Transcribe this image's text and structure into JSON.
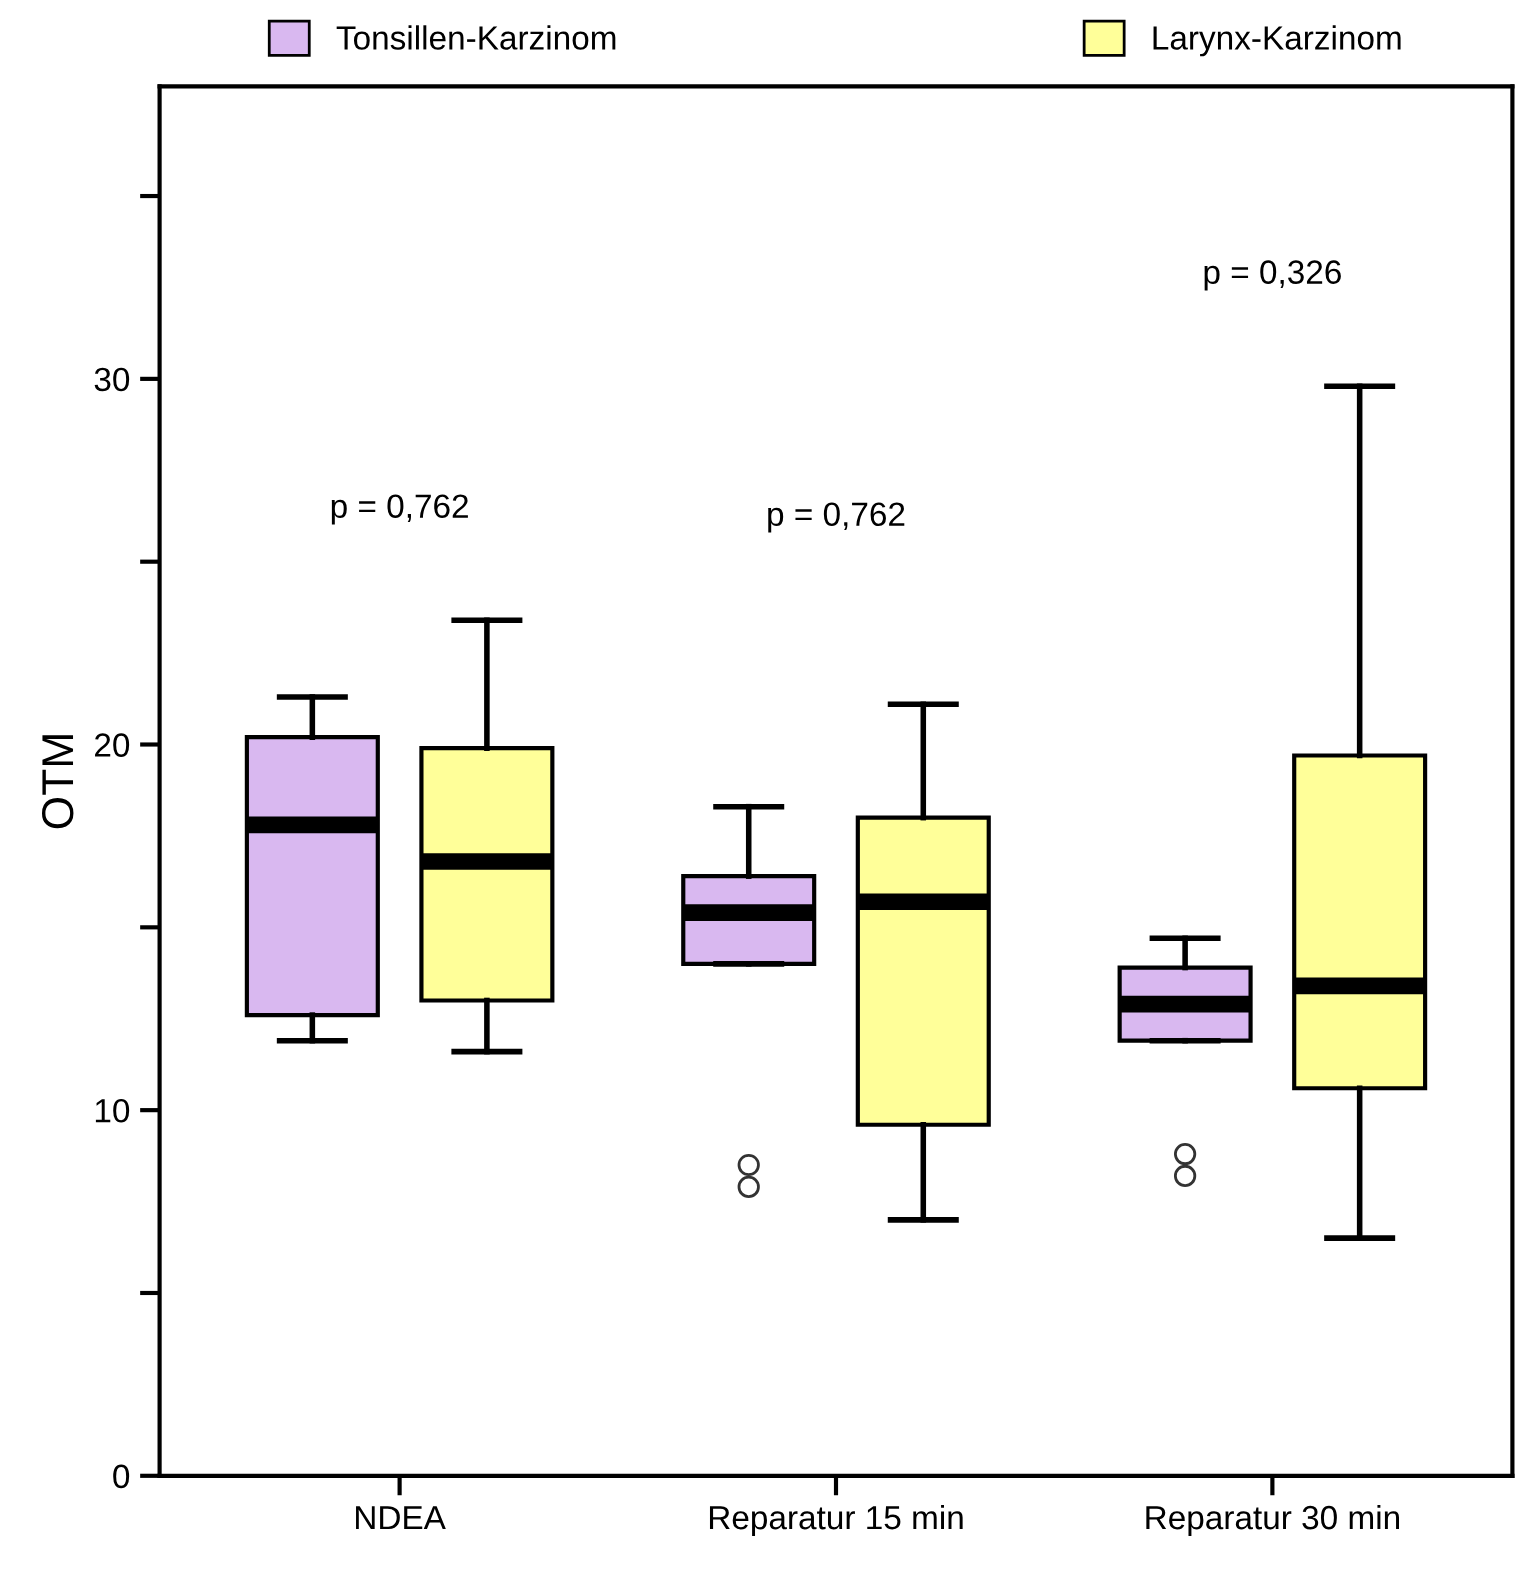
{
  "chart_data": {
    "type": "box",
    "ylabel": "OTM",
    "categories": [
      "NDEA",
      "Reparatur 15 min",
      "Reparatur 30 min"
    ],
    "series": [
      {
        "name": "Tonsillen-Karzinom",
        "color": "#d9b8f0",
        "boxes": [
          {
            "low": 11.9,
            "q1": 12.6,
            "median": 17.8,
            "q3": 20.2,
            "high": 21.3
          },
          {
            "low": 14.0,
            "q1": 14.0,
            "median": 15.4,
            "q3": 16.4,
            "high": 18.3,
            "outliers": [
              8.5,
              7.9
            ]
          },
          {
            "low": 11.9,
            "q1": 11.9,
            "median": 12.9,
            "q3": 13.9,
            "high": 14.7,
            "outliers": [
              8.8,
              8.2
            ]
          }
        ]
      },
      {
        "name": "Larynx-Karzinom",
        "color": "#ffff99",
        "boxes": [
          {
            "low": 11.6,
            "q1": 13.0,
            "median": 16.8,
            "q3": 19.9,
            "high": 23.4
          },
          {
            "low": 7.0,
            "q1": 9.6,
            "median": 15.7,
            "q3": 18.0,
            "high": 21.1
          },
          {
            "low": 6.5,
            "q1": 10.6,
            "median": 13.4,
            "q3": 19.7,
            "high": 29.8
          }
        ]
      }
    ],
    "ylim": [
      0,
      38
    ],
    "yticks": [
      0,
      {
        "value": 5,
        "label": null
      },
      10,
      {
        "value": 15,
        "label": null
      },
      20,
      {
        "value": 25,
        "label": null
      },
      30,
      {
        "value": 35,
        "label": null
      }
    ],
    "annotations": [
      "p = 0,762",
      "p = 0,762",
      "p = 0,326"
    ],
    "legend": "top",
    "grid": false
  }
}
